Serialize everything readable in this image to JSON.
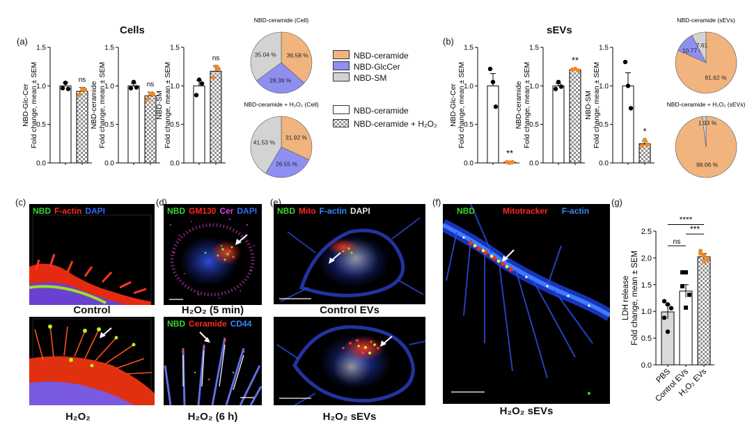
{
  "panels": {
    "a": {
      "letter": "(a)",
      "title": "Cells"
    },
    "b": {
      "letter": "(b)",
      "title": "sEVs"
    },
    "c": {
      "letter": "(c)",
      "channels": [
        {
          "t": "NBD",
          "c": "#39d62b"
        },
        {
          "t": "F-actin",
          "c": "#ff2a1a"
        },
        {
          "t": "DAPI",
          "c": "#2d6bff"
        }
      ],
      "caption_top": "Control",
      "caption_bottom": "H₂O₂"
    },
    "d": {
      "letter": "(d)",
      "channels_top": [
        {
          "t": "NBD",
          "c": "#39d62b"
        },
        {
          "t": "GM130",
          "c": "#ff2a1a"
        },
        {
          "t": "Cer",
          "c": "#e040e0"
        },
        {
          "t": "DAPI",
          "c": "#2d6bff"
        }
      ],
      "channels_bottom": [
        {
          "t": "NBD",
          "c": "#39d62b"
        },
        {
          "t": "Ceramide",
          "c": "#ff2a1a"
        },
        {
          "t": "CD44",
          "c": "#2d8cff"
        }
      ],
      "caption_top": "H₂O₂ (5 min)",
      "caption_bottom": "H₂O₂ (6 h)"
    },
    "e": {
      "letter": "(e)",
      "channels": [
        {
          "t": "NBD",
          "c": "#39d62b"
        },
        {
          "t": "Mito",
          "c": "#ff2a1a"
        },
        {
          "t": "F-actin",
          "c": "#2d8cff"
        },
        {
          "t": "DAPI",
          "c": "#e8e8e8"
        }
      ],
      "caption_top": "Control EVs",
      "caption_bottom": "H₂O₂ sEVs"
    },
    "f": {
      "letter": "(f)",
      "channels": [
        {
          "t": "NBD",
          "c": "#39d62b"
        },
        {
          "t": "Mitotracker",
          "c": "#ff2a1a"
        },
        {
          "t": "F-actin",
          "c": "#2d8cff"
        }
      ],
      "caption": "H₂O₂ sEVs"
    },
    "g": {
      "letter": "(g)"
    }
  },
  "legends": {
    "pie": [
      {
        "label": "NBD-ceramide",
        "color": "#f2b47e"
      },
      {
        "label": "NBD-GlcCer",
        "color": "#8f8ff2"
      },
      {
        "label": "NBD-SM",
        "color": "#d3d3d3"
      }
    ],
    "bar": [
      {
        "label": "NBD-ceramide",
        "fill": "white"
      },
      {
        "label": "NBD-ceramide + H₂O₂",
        "fill": "check"
      }
    ]
  },
  "chart_data": [
    {
      "type": "bar",
      "id": "a1",
      "ylabel": "NBD-Glc-Cer\nFold change, mean ± SEM",
      "ylim": [
        0,
        1.5
      ],
      "yticks": [
        "0.0",
        "0.5",
        "1.0",
        "1.5"
      ],
      "categories": [
        "NBD-ceramide",
        "NBD-ceramide + H₂O₂"
      ],
      "values": [
        1.0,
        0.93
      ],
      "errors": [
        0.04,
        0.05
      ],
      "points": [
        [
          0.97,
          1.04,
          0.96
        ],
        [
          0.88,
          0.96,
          0.95
        ]
      ],
      "significance": "ns"
    },
    {
      "type": "bar",
      "id": "a2",
      "ylabel": "NBD-ceramide\nFold change, mean ± SEM",
      "ylim": [
        0,
        1.5
      ],
      "yticks": [
        "0.0",
        "0.5",
        "1.0",
        "1.5"
      ],
      "categories": [
        "NBD-ceramide",
        "NBD-ceramide + H₂O₂"
      ],
      "values": [
        1.0,
        0.87
      ],
      "errors": [
        0.03,
        0.05
      ],
      "points": [
        [
          0.97,
          1.05,
          0.98
        ],
        [
          0.82,
          0.9,
          0.89
        ]
      ],
      "significance": "ns"
    },
    {
      "type": "bar",
      "id": "a3",
      "ylabel": "NBD-SM\nFold change, mean ± SEM",
      "ylim": [
        0,
        1.5
      ],
      "yticks": [
        "0.0",
        "0.5",
        "1.0",
        "1.5"
      ],
      "categories": [
        "NBD-ceramide",
        "NBD-ceramide + H₂O₂"
      ],
      "values": [
        1.0,
        1.19
      ],
      "errors": [
        0.07,
        0.07
      ],
      "points": [
        [
          0.88,
          1.08,
          1.03
        ],
        [
          1.11,
          1.25,
          1.22
        ]
      ],
      "significance": "ns"
    },
    {
      "type": "pie",
      "id": "pie_a_cell",
      "title": "NBD-ceramide (Cell)",
      "labels": [
        "NBD-ceramide",
        "NBD-GlcCer",
        "NBD-SM"
      ],
      "values": [
        36.58,
        28.39,
        35.04
      ],
      "value_labels": [
        "36.58 %",
        "28.39 %",
        "35.04 %"
      ]
    },
    {
      "type": "pie",
      "id": "pie_a_h2o2",
      "title": "NBD-ceramide + H₂O₂ (Cell)",
      "labels": [
        "NBD-ceramide",
        "NBD-GlcCer",
        "NBD-SM"
      ],
      "values": [
        31.92,
        26.55,
        41.53
      ],
      "value_labels": [
        "31.92 %",
        "26.55 %",
        "41.53 %"
      ]
    },
    {
      "type": "bar",
      "id": "b1",
      "ylabel": "NBD-Glc-Cer\nFold change, mean ± SEM",
      "ylim": [
        0,
        1.5
      ],
      "yticks": [
        "0.0",
        "0.5",
        "1.0",
        "1.5"
      ],
      "categories": [
        "NBD-ceramide",
        "NBD-ceramide + H₂O₂"
      ],
      "values": [
        1.0,
        0.01
      ],
      "errors": [
        0.16,
        0.005
      ],
      "points": [
        [
          1.22,
          1.05,
          0.73
        ],
        [
          0.01,
          0.005,
          0.01
        ]
      ],
      "significance": "**"
    },
    {
      "type": "bar",
      "id": "b2",
      "ylabel": "NBD-ceramide\nFold change, mean ± SEM",
      "ylim": [
        0,
        1.5
      ],
      "yticks": [
        "0.0",
        "0.5",
        "1.0",
        "1.5"
      ],
      "categories": [
        "NBD-ceramide",
        "NBD-ceramide + H₂O₂"
      ],
      "values": [
        1.0,
        1.21
      ],
      "errors": [
        0.03,
        0.01
      ],
      "points": [
        [
          0.96,
          1.05,
          0.99
        ],
        [
          1.21,
          1.22,
          1.2
        ]
      ],
      "significance": "**"
    },
    {
      "type": "bar",
      "id": "b3",
      "ylabel": "NBD-SM\nFold change, mean ± SEM",
      "ylim": [
        0,
        1.5
      ],
      "yticks": [
        "0.0",
        "0.5",
        "1.0",
        "1.5"
      ],
      "categories": [
        "NBD-ceramide",
        "NBD-ceramide + H₂O₂"
      ],
      "values": [
        1.0,
        0.25
      ],
      "errors": [
        0.17,
        0.03
      ],
      "points": [
        [
          1.31,
          1.0,
          0.71
        ],
        [
          0.22,
          0.3,
          0.24
        ]
      ],
      "significance": "*"
    },
    {
      "type": "pie",
      "id": "pie_b_sev",
      "title": "NBD-ceramide (sEVs)",
      "labels": [
        "NBD-ceramide",
        "NBD-GlcCer",
        "NBD-SM"
      ],
      "values": [
        81.62,
        10.77,
        7.61
      ],
      "value_labels": [
        "81.62 %",
        "10.77 %",
        "7.61"
      ]
    },
    {
      "type": "pie",
      "id": "pie_b_h2o2",
      "title": "NBD-ceramide + H₂O₂ (sEVs)",
      "labels": [
        "NBD-ceramide",
        "NBD-GlcCer",
        "NBD-SM"
      ],
      "values": [
        98.06,
        0.01,
        1.93
      ],
      "value_labels": [
        "98.06 %",
        "",
        "1.93 %"
      ]
    },
    {
      "type": "bar",
      "id": "g",
      "ylabel": "LDH release\nFold change, mean ± SEM",
      "ylim": [
        0,
        2.5
      ],
      "yticks": [
        "0.0",
        "0.5",
        "1.0",
        "1.5",
        "2.0",
        "2.5"
      ],
      "categories": [
        "PBS",
        "Control EVs",
        "H₂O₂ EVs"
      ],
      "values": [
        0.99,
        1.38,
        2.02
      ],
      "errors": [
        0.13,
        0.12,
        0.06
      ],
      "points": [
        [
          1.19,
          1.13,
          1.06,
          0.88,
          0.62
        ],
        [
          1.73,
          1.73,
          1.31,
          1.47,
          1.07
        ],
        [
          2.13,
          2.04,
          1.98,
          2.08,
          1.93
        ]
      ],
      "significance": [
        {
          "pair": [
            0,
            1
          ],
          "label": "ns"
        },
        {
          "pair": [
            1,
            2
          ],
          "label": "***"
        },
        {
          "pair": [
            0,
            2
          ],
          "label": "****"
        }
      ]
    }
  ]
}
